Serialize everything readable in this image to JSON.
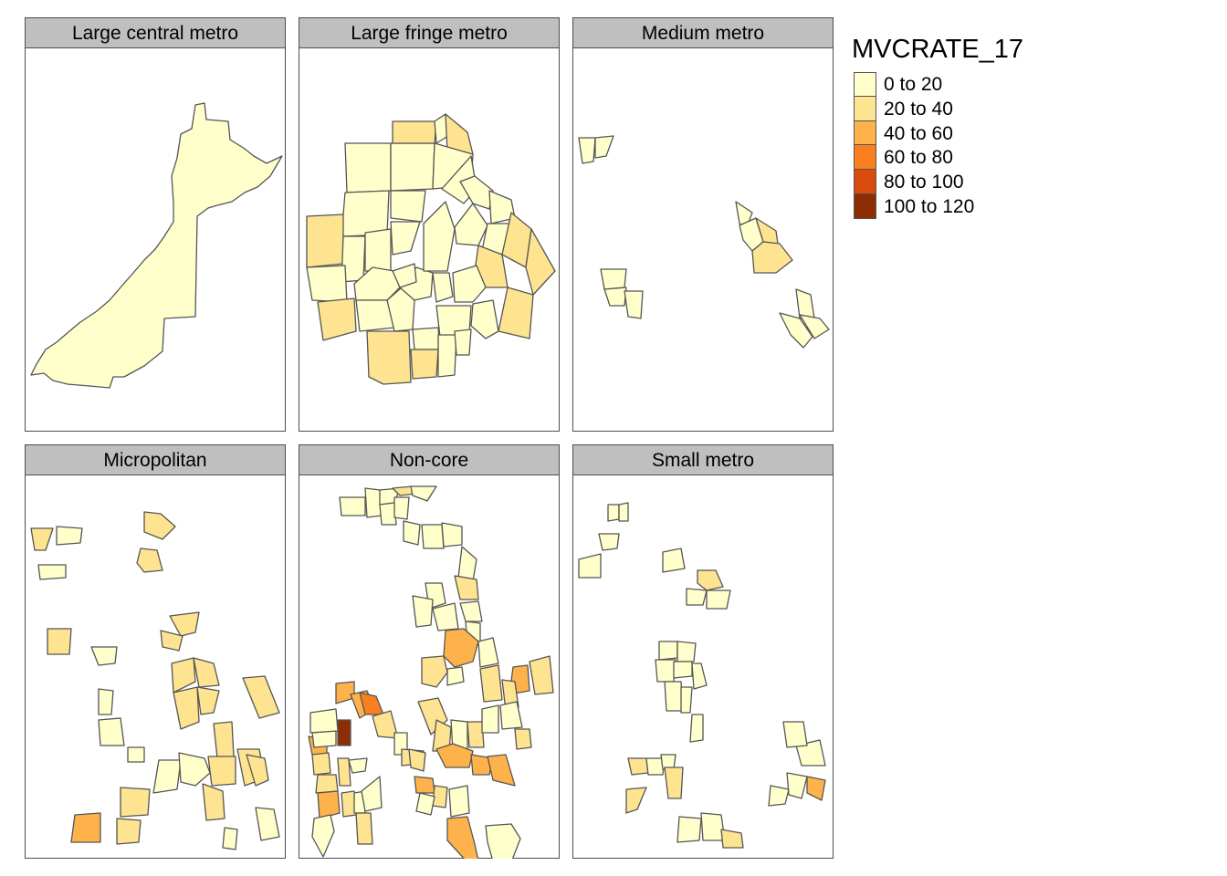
{
  "map": {
    "legend": {
      "title": "MVCRATE_17",
      "classes": [
        {
          "label": "0 to 20",
          "color": "#FFFFCC"
        },
        {
          "label": "20 to 40",
          "color": "#FEE391"
        },
        {
          "label": "40 to 60",
          "color": "#FEB24C"
        },
        {
          "label": "60 to 80",
          "color": "#F97F21"
        },
        {
          "label": "80 to 100",
          "color": "#D84A0E"
        },
        {
          "label": "100 to 120",
          "color": "#8C2D04"
        }
      ]
    },
    "panels": [
      {
        "title": "Large central metro"
      },
      {
        "title": "Large fringe metro"
      },
      {
        "title": "Medium metro"
      },
      {
        "title": "Micropolitan"
      },
      {
        "title": "Non-core"
      },
      {
        "title": "Small metro"
      }
    ]
  }
}
